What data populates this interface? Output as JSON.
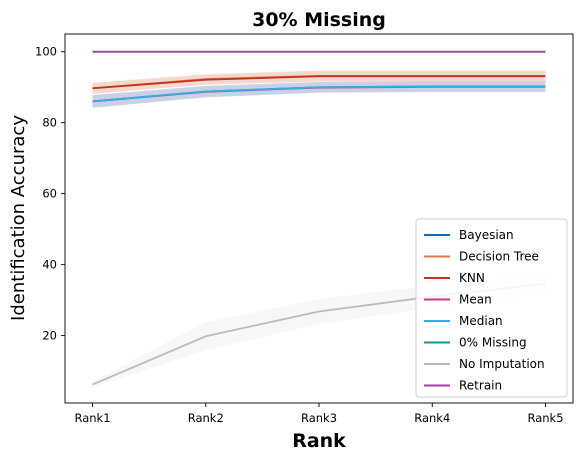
{
  "chart_data": {
    "type": "line",
    "title": "30% Missing",
    "xlabel": "Rank",
    "ylabel": "Identification Accuracy",
    "categories": [
      "Rank1",
      "Rank2",
      "Rank3",
      "Rank4",
      "Rank5"
    ],
    "ylim": [
      1,
      105
    ],
    "yticks": [
      20,
      40,
      60,
      80,
      100
    ],
    "grid": false,
    "legend_position": "bottom-right",
    "series": [
      {
        "name": "Bayesian",
        "color": "#0a6fb8",
        "values": [
          86,
          88.8,
          90,
          90.2,
          90.2
        ],
        "band": [
          1.8,
          1.6,
          1.5,
          1.5,
          1.5
        ]
      },
      {
        "name": "Decision Tree",
        "color": "#e07b4a",
        "values": [
          89.7,
          92.3,
          93.2,
          93.2,
          93.2
        ],
        "band": [
          1.6,
          1.5,
          1.6,
          1.6,
          1.6
        ]
      },
      {
        "name": "KNN",
        "color": "#c0341d",
        "values": [
          89.7,
          92.1,
          93.1,
          93.1,
          93.1
        ],
        "band": [
          1.5,
          1.4,
          1.5,
          1.5,
          1.5
        ]
      },
      {
        "name": "Mean",
        "color": "#d0397f",
        "values": [
          86,
          88.7,
          89.9,
          90.1,
          90.1
        ],
        "band": [
          1.8,
          1.6,
          1.5,
          1.5,
          1.5
        ]
      },
      {
        "name": "Median",
        "color": "#36aee5",
        "values": [
          86,
          88.8,
          90,
          90.2,
          90.2
        ],
        "band": [
          1.8,
          1.6,
          1.5,
          1.5,
          1.5
        ]
      },
      {
        "name": "0% Missing",
        "color": "#109a8c",
        "values": [
          100,
          100,
          100,
          100,
          100
        ],
        "band": [
          0,
          0,
          0,
          0,
          0
        ]
      },
      {
        "name": "No Imputation",
        "color": "#bbbbbb",
        "values": [
          6.2,
          19.8,
          26.8,
          31,
          34.6
        ],
        "band": [
          0.8,
          4,
          3.5,
          3.2,
          3
        ]
      },
      {
        "name": "Retrain",
        "color": "#a040a0",
        "values": [
          100,
          100,
          100,
          100,
          100
        ],
        "band": [
          0,
          0,
          0,
          0,
          0
        ]
      }
    ]
  }
}
